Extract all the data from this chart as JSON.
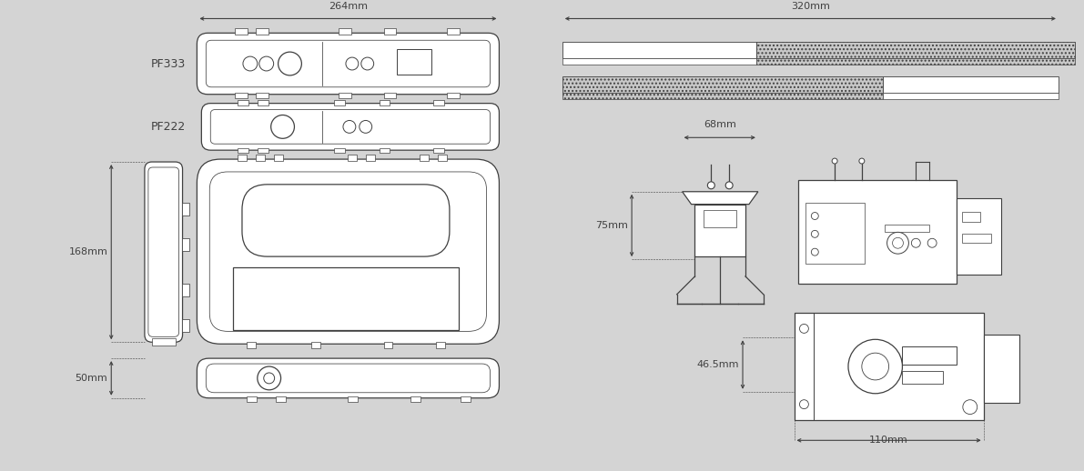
{
  "bg_color": "#d4d4d4",
  "line_color": "#404040",
  "text_color": "#404040",
  "fill_white": "#ffffff",
  "dim_264": "264mm",
  "dim_320": "320mm",
  "dim_168": "168mm",
  "dim_50": "50mm",
  "dim_68": "68mm",
  "dim_75": "75mm",
  "dim_46_5": "46.5mm",
  "dim_110": "110mm",
  "label_pf333": "PF333",
  "label_pf222": "PF222",
  "figw": 11.91,
  "figh": 5.18,
  "dpi": 100
}
